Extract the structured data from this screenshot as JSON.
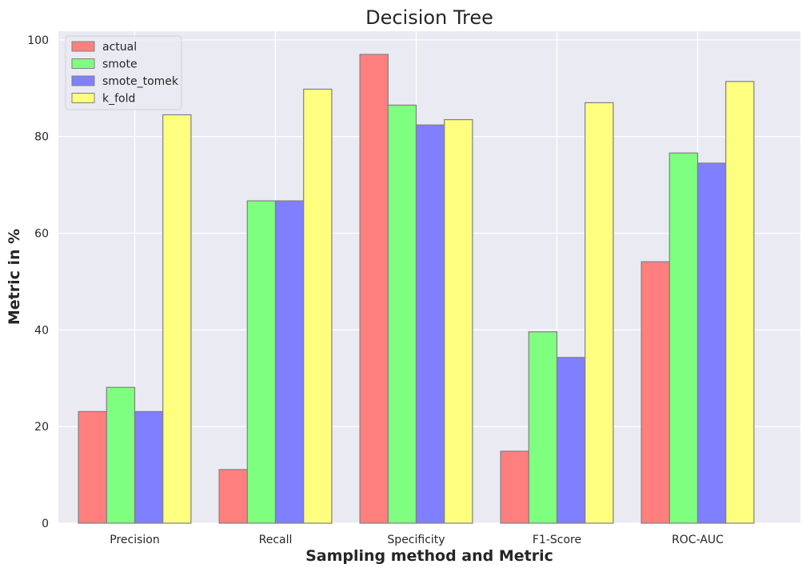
{
  "chart_data": {
    "type": "bar",
    "title": "Decision Tree",
    "xlabel": "Sampling method and Metric",
    "ylabel": "Metric in %",
    "categories": [
      "Precision",
      "Recall",
      "Specificity",
      "F1-Score",
      "ROC-AUC"
    ],
    "series": [
      {
        "name": "actual",
        "color": "#ff7f7f",
        "values": [
          23.1,
          11.1,
          97.0,
          14.9,
          54.1
        ]
      },
      {
        "name": "smote",
        "color": "#7fff7f",
        "values": [
          28.1,
          66.7,
          86.5,
          39.6,
          76.6
        ]
      },
      {
        "name": "smote_tomek",
        "color": "#7f7fff",
        "values": [
          23.1,
          66.7,
          82.4,
          34.3,
          74.5
        ]
      },
      {
        "name": "k_fold",
        "color": "#ffff7f",
        "values": [
          84.5,
          89.8,
          83.5,
          87.0,
          91.4
        ]
      }
    ],
    "ylim": [
      0,
      101.8
    ],
    "yticks": [
      0,
      20,
      40,
      60,
      80,
      100
    ],
    "grid": true,
    "legend_position": "top-left",
    "plot_background": "#eaeaf2",
    "bar_edge_color": "#808080"
  }
}
